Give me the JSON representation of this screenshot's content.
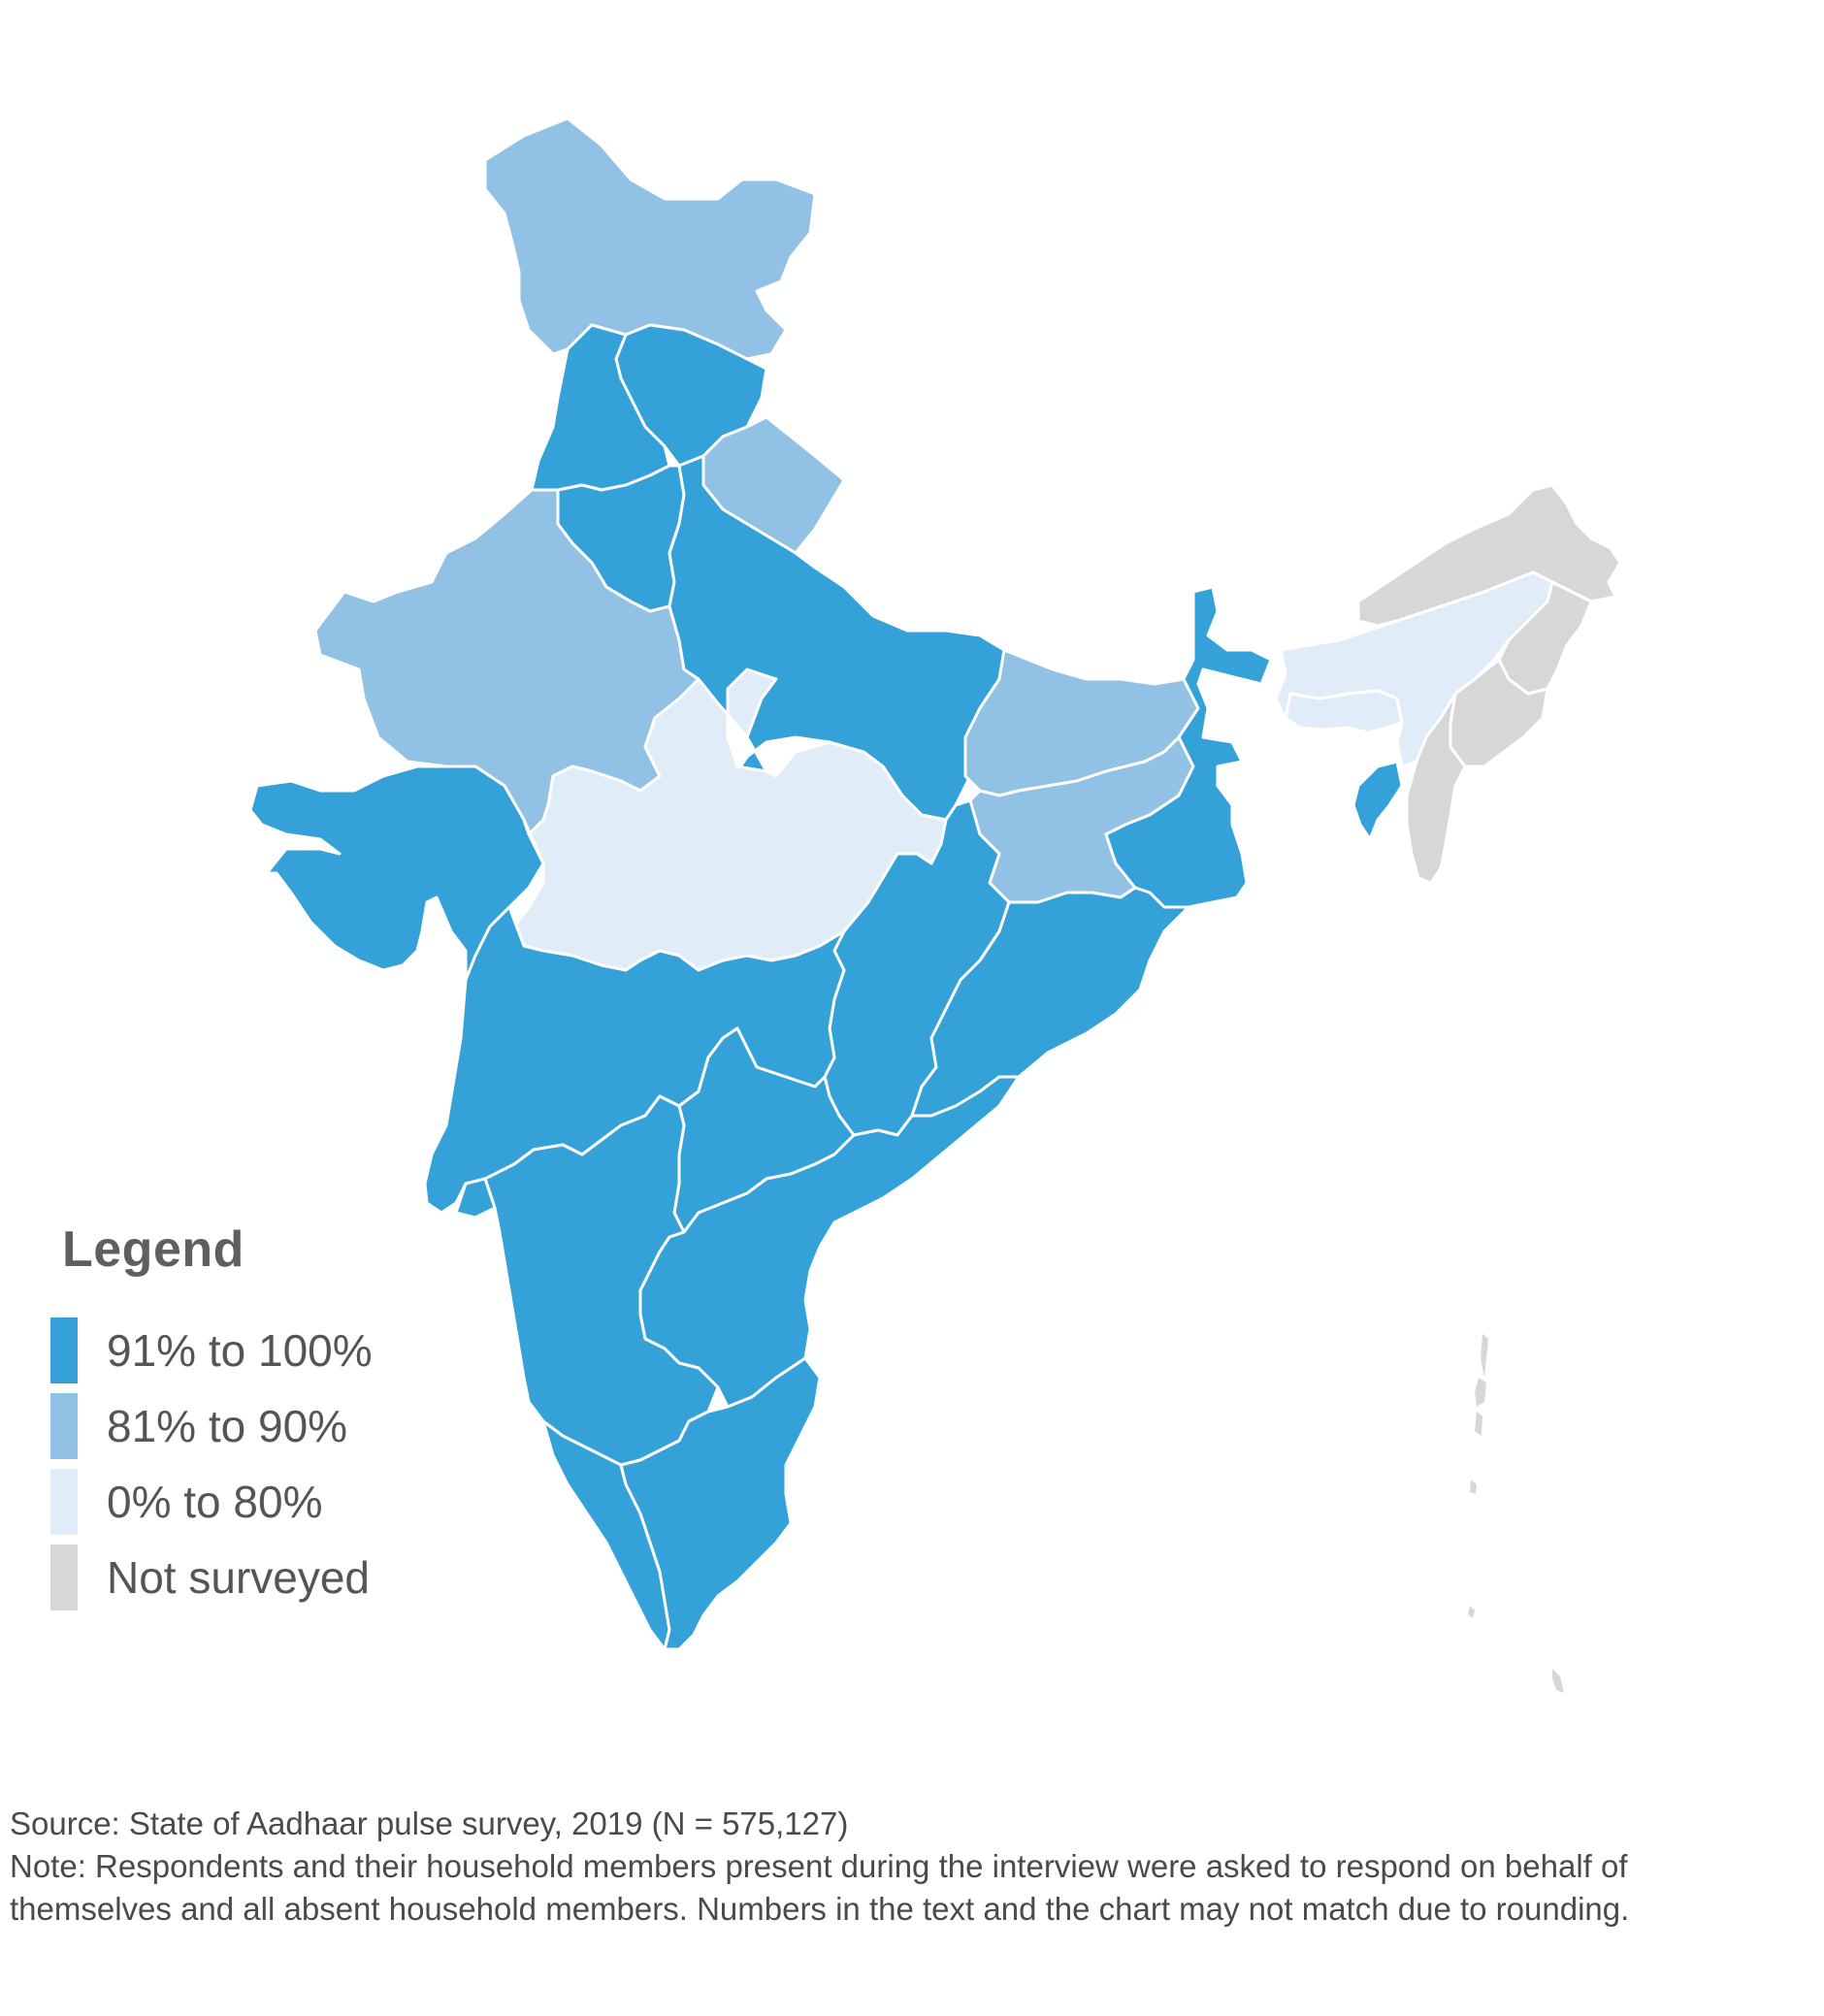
{
  "legend": {
    "title": "Legend",
    "items": [
      {
        "label": "91% to 100%",
        "color": "#34a1d9"
      },
      {
        "label": "81% to 90%",
        "color": "#92c1e6"
      },
      {
        "label": "0% to 80%",
        "color": "#e0edf8"
      },
      {
        "label": "Not surveyed",
        "color": "#d7d7d7"
      }
    ]
  },
  "footer": {
    "source": "Source: State of Aadhaar pulse survey, 2019 (N = 575,127)",
    "note": "Note: Respondents and their household members present during the interview were asked to respond on behalf of themselves and all absent household members. Numbers in the text and the chart may not match due to rounding."
  },
  "map": {
    "regions": [
      {
        "name": "Jammu and Kashmir",
        "category": "81% to 90%"
      },
      {
        "name": "Himachal Pradesh",
        "category": "91% to 100%"
      },
      {
        "name": "Punjab",
        "category": "91% to 100%"
      },
      {
        "name": "Haryana",
        "category": "91% to 100%"
      },
      {
        "name": "Uttarakhand",
        "category": "81% to 90%"
      },
      {
        "name": "Rajasthan",
        "category": "81% to 90%"
      },
      {
        "name": "Uttar Pradesh",
        "category": "91% to 100%"
      },
      {
        "name": "Gujarat",
        "category": "91% to 100%"
      },
      {
        "name": "Madhya Pradesh",
        "category": "0% to 80%"
      },
      {
        "name": "Bihar",
        "category": "81% to 90%"
      },
      {
        "name": "Jharkhand",
        "category": "81% to 90%"
      },
      {
        "name": "West Bengal",
        "category": "91% to 100%"
      },
      {
        "name": "Sikkim",
        "category": "91% to 100%"
      },
      {
        "name": "Chhattisgarh",
        "category": "91% to 100%"
      },
      {
        "name": "Odisha",
        "category": "91% to 100%"
      },
      {
        "name": "Maharashtra",
        "category": "91% to 100%"
      },
      {
        "name": "Telangana",
        "category": "91% to 100%"
      },
      {
        "name": "Andhra Pradesh",
        "category": "91% to 100%"
      },
      {
        "name": "Karnataka",
        "category": "91% to 100%"
      },
      {
        "name": "Goa",
        "category": "91% to 100%"
      },
      {
        "name": "Kerala",
        "category": "91% to 100%"
      },
      {
        "name": "Tamil Nadu",
        "category": "91% to 100%"
      },
      {
        "name": "Assam",
        "category": "0% to 80%"
      },
      {
        "name": "Meghalaya",
        "category": "0% to 80%"
      },
      {
        "name": "Tripura",
        "category": "91% to 100%"
      },
      {
        "name": "Arunachal Pradesh",
        "category": "Not surveyed"
      },
      {
        "name": "Nagaland",
        "category": "Not surveyed"
      },
      {
        "name": "Manipur",
        "category": "Not surveyed"
      },
      {
        "name": "Mizoram",
        "category": "Not surveyed"
      },
      {
        "name": "Andaman and Nicobar Islands",
        "category": "Not surveyed"
      }
    ]
  }
}
